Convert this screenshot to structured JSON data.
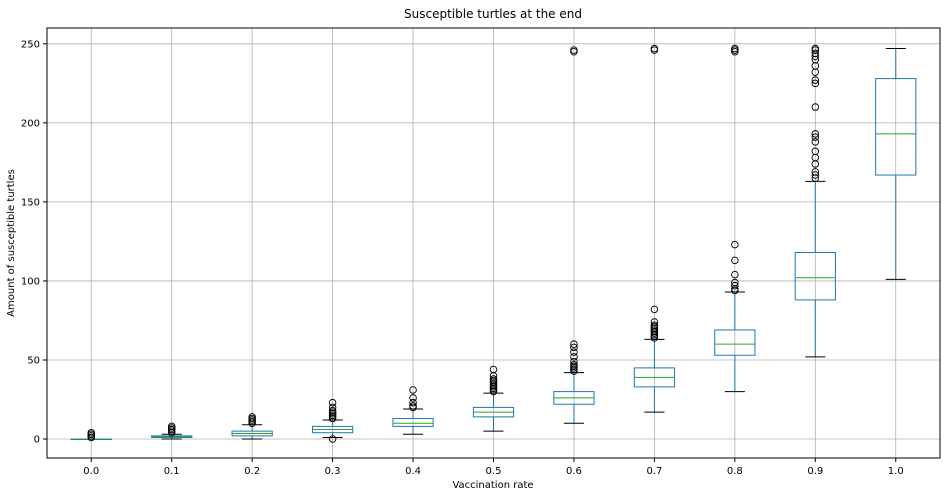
{
  "chart_data": {
    "type": "box",
    "title": "Susceptible turtles at the end",
    "xlabel": "Vaccination rate",
    "ylabel": "Amount of susceptible turtles",
    "ylim": [
      -12,
      260
    ],
    "yticks": [
      0,
      50,
      100,
      150,
      200,
      250
    ],
    "grid": true,
    "colors": {
      "box": "#1f77b4",
      "median": "#2ca02c",
      "whisker_cap": "#000000",
      "grid": "#b0b0b0",
      "flier": "#000000"
    },
    "categories": [
      "0.0",
      "0.1",
      "0.2",
      "0.3",
      "0.4",
      "0.5",
      "0.6",
      "0.7",
      "0.8",
      "0.9",
      "1.0"
    ],
    "boxes": [
      {
        "label": "0.0",
        "q1": 0,
        "median": 0,
        "q3": 0,
        "whisker_low": 0,
        "whisker_high": 0,
        "fliers": [
          1,
          2,
          3,
          4
        ]
      },
      {
        "label": "0.1",
        "q1": 1,
        "median": 1.5,
        "q3": 2,
        "whisker_low": 0,
        "whisker_high": 3,
        "fliers": [
          4,
          5,
          6,
          7,
          8
        ]
      },
      {
        "label": "0.2",
        "q1": 2,
        "median": 3.5,
        "q3": 5,
        "whisker_low": 0,
        "whisker_high": 9,
        "fliers": [
          10,
          11,
          12,
          13,
          14
        ]
      },
      {
        "label": "0.3",
        "q1": 4,
        "median": 6,
        "q3": 8,
        "whisker_low": 1,
        "whisker_high": 12,
        "fliers": [
          0,
          13,
          14,
          15,
          16,
          17,
          18,
          20,
          23
        ]
      },
      {
        "label": "0.4",
        "q1": 8,
        "median": 10,
        "q3": 13,
        "whisker_low": 3,
        "whisker_high": 19,
        "fliers": [
          20,
          21,
          23,
          26,
          31
        ]
      },
      {
        "label": "0.5",
        "q1": 14,
        "median": 17,
        "q3": 20,
        "whisker_low": 5,
        "whisker_high": 29,
        "fliers": [
          30,
          31,
          32,
          33,
          34,
          35,
          36,
          37,
          38,
          40,
          44
        ]
      },
      {
        "label": "0.6",
        "q1": 22,
        "median": 26,
        "q3": 30,
        "whisker_low": 10,
        "whisker_high": 42,
        "fliers": [
          43,
          44,
          45,
          46,
          47,
          49,
          52,
          55,
          58,
          60,
          245,
          246
        ]
      },
      {
        "label": "0.7",
        "q1": 33,
        "median": 39,
        "q3": 45,
        "whisker_low": 17,
        "whisker_high": 63,
        "fliers": [
          64,
          65,
          66,
          67,
          68,
          69,
          70,
          71,
          72,
          74,
          82,
          246,
          247
        ]
      },
      {
        "label": "0.8",
        "q1": 53,
        "median": 60,
        "q3": 69,
        "whisker_low": 30,
        "whisker_high": 93,
        "fliers": [
          94,
          95,
          97,
          99,
          104,
          113,
          123,
          245,
          246,
          247
        ]
      },
      {
        "label": "0.9",
        "q1": 88,
        "median": 102,
        "q3": 118,
        "whisker_low": 52,
        "whisker_high": 163,
        "fliers": [
          165,
          167,
          169,
          174,
          178,
          182,
          188,
          191,
          193,
          210,
          225,
          227,
          232,
          236,
          240,
          242,
          244,
          246,
          247
        ]
      },
      {
        "label": "1.0",
        "q1": 167,
        "median": 193,
        "q3": 228,
        "whisker_low": 101,
        "whisker_high": 247,
        "fliers": []
      }
    ]
  }
}
